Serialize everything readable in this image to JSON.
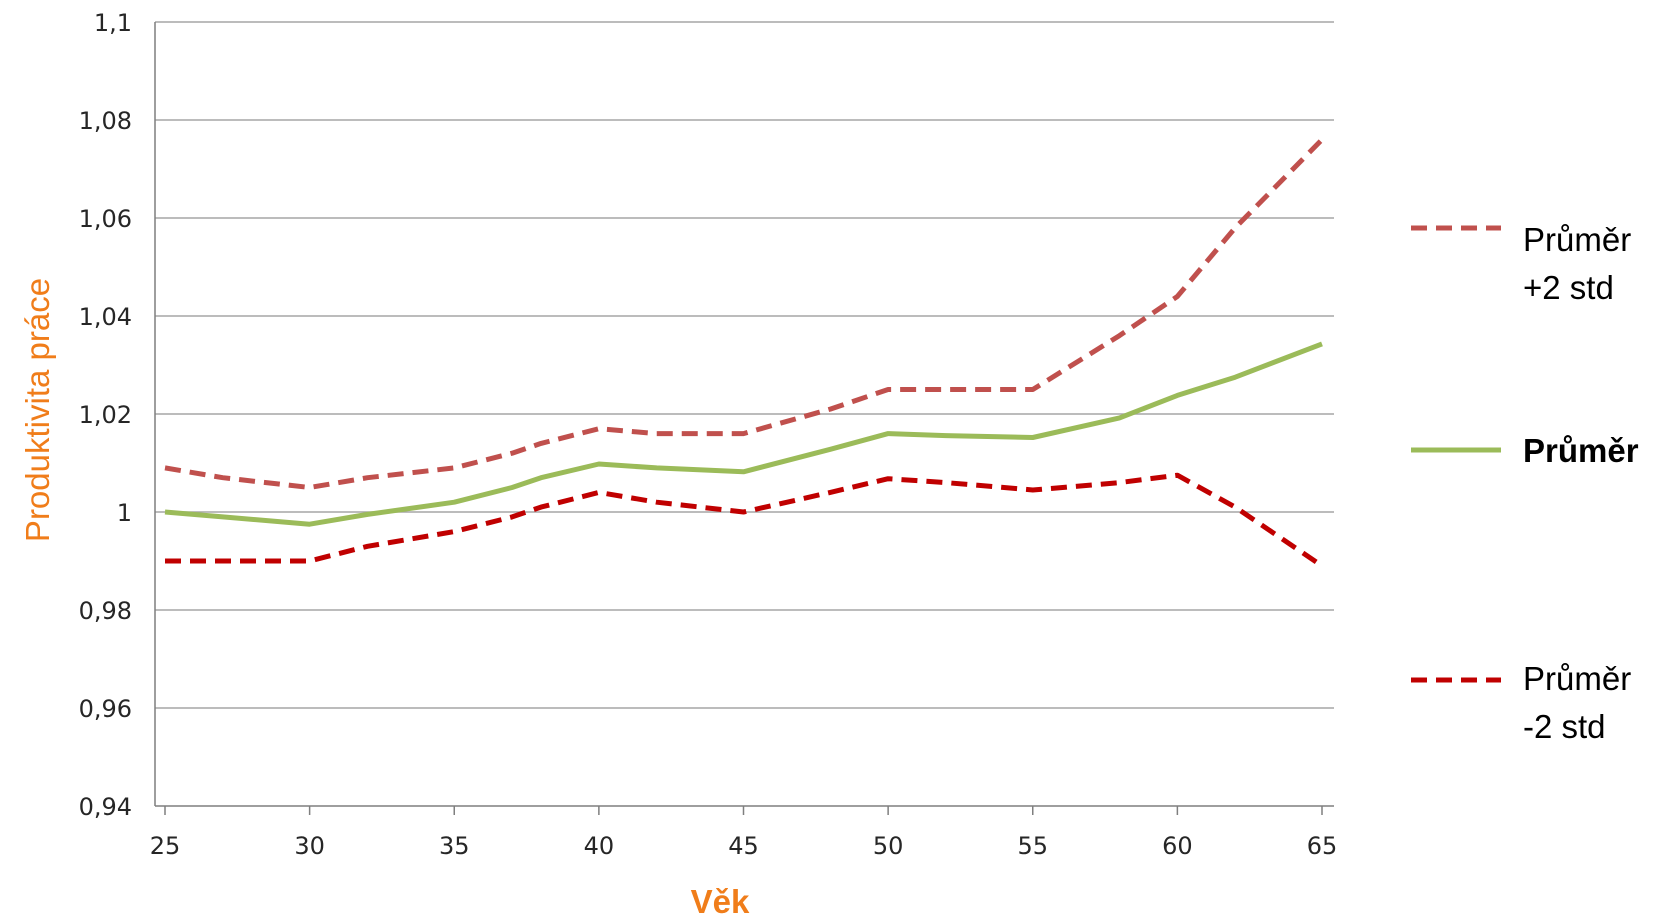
{
  "chart_data": {
    "type": "line",
    "title": "",
    "xlabel": "Věk",
    "ylabel": "Produktivita práce",
    "categories": [
      "25",
      "30",
      "35",
      "40",
      "45",
      "50",
      "55",
      "60",
      "65"
    ],
    "x": [
      25,
      27,
      30,
      32,
      35,
      37,
      38,
      40,
      42,
      45,
      48,
      50,
      52,
      55,
      58,
      60,
      62,
      65
    ],
    "xlim": [
      25,
      65
    ],
    "ylim": [
      0.94,
      1.1
    ],
    "y_ticks": [
      "1,1",
      "1,08",
      "1,06",
      "1,04",
      "1,02",
      "1",
      "0,98",
      "0,96",
      "0,94"
    ],
    "y_tick_values": [
      1.1,
      1.08,
      1.06,
      1.04,
      1.02,
      1.0,
      0.98,
      0.96,
      0.94
    ],
    "grid": true,
    "legend_position": "right",
    "series": [
      {
        "name": "Průměr +2 std",
        "legend_lines": [
          "Průměr",
          "+2 std"
        ],
        "bold": false,
        "color": "#C0504D",
        "dash": "dashed",
        "values": [
          1.009,
          1.007,
          1.005,
          1.007,
          1.009,
          1.012,
          1.014,
          1.017,
          1.016,
          1.016,
          1.021,
          1.025,
          1.025,
          1.025,
          1.036,
          1.044,
          1.058,
          1.076
        ]
      },
      {
        "name": "Průměr",
        "legend_lines": [
          "Průměr"
        ],
        "bold": true,
        "color": "#9BBB59",
        "dash": "solid",
        "values": [
          1.0,
          0.999,
          0.9975,
          0.9995,
          1.002,
          1.005,
          1.007,
          1.0098,
          1.009,
          1.0082,
          1.0128,
          1.016,
          1.0156,
          1.0152,
          1.0192,
          1.0238,
          1.0275,
          1.0343
        ]
      },
      {
        "name": "Průměr -2 std",
        "legend_lines": [
          "Průměr",
          "-2 std"
        ],
        "bold": false,
        "color": "#C00000",
        "dash": "dashed",
        "values": [
          0.99,
          0.99,
          0.99,
          0.993,
          0.996,
          0.999,
          1.001,
          1.004,
          1.002,
          1.0,
          1.004,
          1.0068,
          1.006,
          1.0045,
          1.006,
          1.0075,
          1.001,
          0.989
        ]
      }
    ]
  },
  "colors": {
    "axis_title": "#F07D1A",
    "gridline": "#A6A6A6",
    "axis_line": "#7F7F7F"
  }
}
